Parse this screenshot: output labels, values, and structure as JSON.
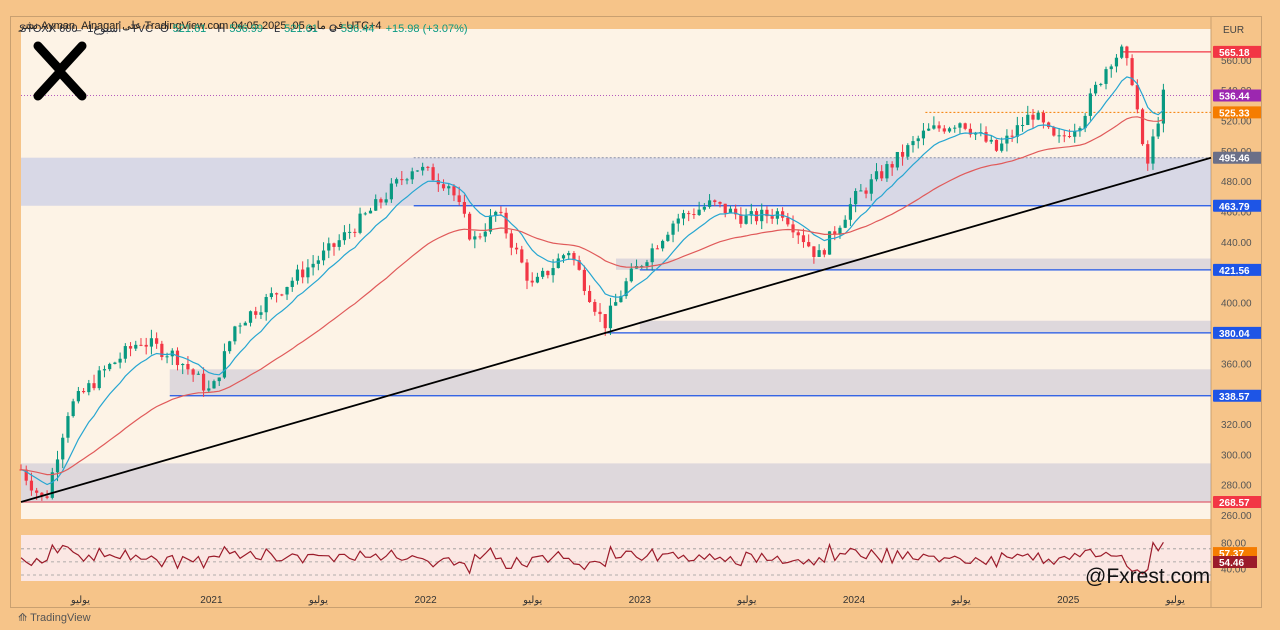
{
  "watermark": "نشر Ayman_Alnagar على TradingView.com 04:05 2025 ,05 في مايو UTC+4",
  "header": {
    "symbol": "STOXX 600 · أسبوع1 · TVC",
    "open_label": "O",
    "open": "521.61",
    "high_label": "H",
    "high": "536.99",
    "low_label": "L",
    "low": "521.61",
    "close_label": "C",
    "close": "536.44",
    "change": "+15.98 (+3.07%)"
  },
  "currency": "EUR",
  "handle": "@Fxrest.com",
  "footer": "TradingView",
  "colors": {
    "up": "#089981",
    "down": "#f23645",
    "ema_fast": "#26a6d1",
    "ema_slow": "#e05a5a",
    "support": "#1e55e6",
    "zone": "rgba(140,160,230,0.35)",
    "rsi": "#9b1b2a"
  },
  "chart_data": {
    "type": "candlestick",
    "title": "STOXX 600 Weekly",
    "ylim": [
      260,
      575
    ],
    "y_ticks": [
      260,
      280,
      300,
      320,
      340,
      360,
      380,
      400,
      420,
      440,
      460,
      480,
      500,
      520,
      540,
      560
    ],
    "x_labels": [
      "يوليو",
      "2021",
      "يوليو",
      "2022",
      "يوليو",
      "2023",
      "يوليو",
      "2024",
      "يوليو",
      "2025",
      "يوليو"
    ],
    "x_label_pos": [
      0.05,
      0.16,
      0.25,
      0.34,
      0.43,
      0.52,
      0.61,
      0.7,
      0.79,
      0.88,
      0.97
    ],
    "price_labels": [
      {
        "value": "565.18",
        "color": "#f23645"
      },
      {
        "value": "536.44",
        "color": "#9c27b0"
      },
      {
        "value": "525.33",
        "color": "#f57c00"
      },
      {
        "value": "495.46",
        "color": "#6a6f88"
      },
      {
        "value": "463.79",
        "color": "#1e55e6"
      },
      {
        "value": "421.56",
        "color": "#1e55e6"
      },
      {
        "value": "380.04",
        "color": "#1e55e6"
      },
      {
        "value": "338.57",
        "color": "#1e55e6"
      },
      {
        "value": "268.57",
        "color": "#f23645"
      }
    ],
    "support_levels": [
      463.79,
      421.56,
      380.04,
      338.57,
      268.57
    ],
    "zones": [
      [
        463.79,
        495.46
      ],
      [
        421.56,
        429
      ],
      [
        380.04,
        388
      ],
      [
        338.57,
        356
      ],
      [
        268.57,
        294
      ]
    ],
    "trendline": {
      "from": [
        0,
        268.57
      ],
      "to": [
        1,
        495.46
      ]
    },
    "key_points": [
      {
        "t": 0.0,
        "v": 290
      },
      {
        "t": 0.02,
        "v": 268
      },
      {
        "t": 0.04,
        "v": 330
      },
      {
        "t": 0.07,
        "v": 355
      },
      {
        "t": 0.1,
        "v": 375
      },
      {
        "t": 0.13,
        "v": 365
      },
      {
        "t": 0.16,
        "v": 340
      },
      {
        "t": 0.18,
        "v": 385
      },
      {
        "t": 0.22,
        "v": 410
      },
      {
        "t": 0.26,
        "v": 435
      },
      {
        "t": 0.3,
        "v": 465
      },
      {
        "t": 0.33,
        "v": 490
      },
      {
        "t": 0.36,
        "v": 478
      },
      {
        "t": 0.38,
        "v": 440
      },
      {
        "t": 0.4,
        "v": 460
      },
      {
        "t": 0.43,
        "v": 410
      },
      {
        "t": 0.46,
        "v": 435
      },
      {
        "t": 0.49,
        "v": 385
      },
      {
        "t": 0.51,
        "v": 415
      },
      {
        "t": 0.55,
        "v": 455
      },
      {
        "t": 0.58,
        "v": 465
      },
      {
        "t": 0.61,
        "v": 455
      },
      {
        "t": 0.64,
        "v": 460
      },
      {
        "t": 0.67,
        "v": 430
      },
      {
        "t": 0.7,
        "v": 468
      },
      {
        "t": 0.73,
        "v": 490
      },
      {
        "t": 0.76,
        "v": 512
      },
      {
        "t": 0.79,
        "v": 520
      },
      {
        "t": 0.82,
        "v": 500
      },
      {
        "t": 0.85,
        "v": 525
      },
      {
        "t": 0.87,
        "v": 505
      },
      {
        "t": 0.89,
        "v": 520
      },
      {
        "t": 0.915,
        "v": 560
      },
      {
        "t": 0.925,
        "v": 565
      },
      {
        "t": 0.935,
        "v": 545
      },
      {
        "t": 0.945,
        "v": 485
      },
      {
        "t": 0.955,
        "v": 520
      },
      {
        "t": 0.96,
        "v": 536
      }
    ],
    "rsi": {
      "ylim": [
        30,
        85
      ],
      "levels": [
        70,
        50,
        30
      ],
      "labels": [
        {
          "value": "57.37",
          "color": "#f57c00"
        },
        {
          "value": "54.46",
          "color": "#9b1b2a"
        }
      ],
      "tick": "80.00",
      "tick_low": "40.00"
    }
  }
}
